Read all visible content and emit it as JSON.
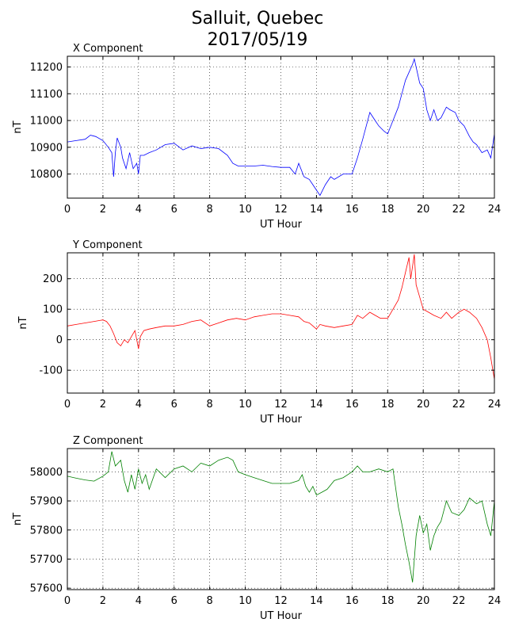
{
  "figure": {
    "title_line1": "Salluit, Quebec",
    "title_line2": "2017/05/19"
  },
  "chart_data": [
    {
      "type": "line",
      "title": "X Component",
      "xlabel": "UT Hour",
      "ylabel": "nT",
      "xlim": [
        0,
        24
      ],
      "ylim": [
        10710,
        11240
      ],
      "xticks": [
        0,
        2,
        4,
        6,
        8,
        10,
        12,
        14,
        16,
        18,
        20,
        22,
        24
      ],
      "yticks": [
        10800,
        10900,
        11000,
        11100,
        11200
      ],
      "grid": true,
      "color": "#0000ff",
      "x": [
        0,
        0.5,
        1,
        1.3,
        1.6,
        2,
        2.3,
        2.5,
        2.6,
        2.7,
        2.8,
        3,
        3.1,
        3.3,
        3.5,
        3.7,
        3.9,
        4,
        4.1,
        4.3,
        4.6,
        5,
        5.5,
        6,
        6.5,
        7,
        7.5,
        8,
        8.5,
        9,
        9.3,
        9.6,
        10,
        10.5,
        11,
        11.5,
        12,
        12.5,
        12.8,
        13,
        13.3,
        13.6,
        13.8,
        14,
        14.2,
        14.5,
        14.8,
        15,
        15.5,
        16,
        16.3,
        16.6,
        16.8,
        17,
        17.3,
        17.5,
        17.8,
        18,
        18.3,
        18.6,
        18.8,
        19,
        19.2,
        19.4,
        19.5,
        19.6,
        19.8,
        20,
        20.2,
        20.4,
        20.6,
        20.8,
        21,
        21.3,
        21.5,
        21.8,
        22,
        22.3,
        22.6,
        22.8,
        23,
        23.3,
        23.6,
        23.8,
        24
      ],
      "y": [
        10920,
        10925,
        10930,
        10945,
        10940,
        10925,
        10900,
        10880,
        10790,
        10880,
        10935,
        10900,
        10860,
        10820,
        10880,
        10820,
        10840,
        10800,
        10870,
        10870,
        10880,
        10890,
        10910,
        10915,
        10890,
        10905,
        10895,
        10900,
        10895,
        10870,
        10840,
        10830,
        10830,
        10830,
        10833,
        10828,
        10825,
        10825,
        10800,
        10840,
        10790,
        10780,
        10760,
        10740,
        10720,
        10760,
        10790,
        10780,
        10800,
        10800,
        10860,
        10930,
        10980,
        11030,
        11000,
        10980,
        10960,
        10950,
        11000,
        11050,
        11100,
        11150,
        11180,
        11210,
        11230,
        11200,
        11140,
        11120,
        11040,
        11000,
        11040,
        11000,
        11010,
        11050,
        11040,
        11030,
        11000,
        10980,
        10940,
        10920,
        10910,
        10880,
        10890,
        10860,
        10950
      ]
    },
    {
      "type": "line",
      "title": "Y Component",
      "xlabel": "UT Hour",
      "ylabel": "nT",
      "xlim": [
        0,
        24
      ],
      "ylim": [
        -175,
        285
      ],
      "xticks": [
        0,
        2,
        4,
        6,
        8,
        10,
        12,
        14,
        16,
        18,
        20,
        22,
        24
      ],
      "yticks": [
        -100,
        0,
        100,
        200
      ],
      "grid": true,
      "color": "#ff0000",
      "x": [
        0,
        0.5,
        1,
        1.5,
        2,
        2.2,
        2.4,
        2.6,
        2.8,
        3,
        3.2,
        3.4,
        3.6,
        3.8,
        4,
        4.1,
        4.3,
        4.6,
        5,
        5.5,
        6,
        6.5,
        7,
        7.5,
        8,
        8.5,
        9,
        9.5,
        10,
        10.5,
        11,
        11.5,
        12,
        12.5,
        13,
        13.3,
        13.6,
        13.8,
        14,
        14.2,
        14.5,
        15,
        15.5,
        16,
        16.3,
        16.6,
        17,
        17.3,
        17.6,
        18,
        18.3,
        18.6,
        18.8,
        19,
        19.2,
        19.3,
        19.5,
        19.6,
        19.8,
        20,
        20.3,
        20.6,
        21,
        21.3,
        21.6,
        22,
        22.3,
        22.6,
        23,
        23.3,
        23.6,
        23.8,
        24
      ],
      "y": [
        45,
        50,
        55,
        60,
        65,
        60,
        45,
        20,
        -10,
        -20,
        0,
        -10,
        10,
        30,
        -30,
        10,
        30,
        35,
        40,
        45,
        45,
        50,
        60,
        65,
        45,
        55,
        65,
        70,
        65,
        75,
        80,
        85,
        85,
        80,
        75,
        60,
        55,
        45,
        35,
        50,
        45,
        40,
        45,
        50,
        80,
        70,
        90,
        80,
        70,
        70,
        100,
        130,
        170,
        220,
        270,
        200,
        280,
        180,
        140,
        100,
        90,
        80,
        70,
        90,
        70,
        90,
        100,
        90,
        70,
        40,
        0,
        -60,
        -130
      ]
    },
    {
      "type": "line",
      "title": "Z Component",
      "xlabel": "UT Hour",
      "ylabel": "nT",
      "xlim": [
        0,
        24
      ],
      "ylim": [
        57595,
        58080
      ],
      "xticks": [
        0,
        2,
        4,
        6,
        8,
        10,
        12,
        14,
        16,
        18,
        20,
        22,
        24
      ],
      "yticks": [
        57600,
        57700,
        57800,
        57900,
        58000
      ],
      "grid": true,
      "color": "#008000",
      "x": [
        0,
        0.5,
        1,
        1.5,
        2,
        2.3,
        2.5,
        2.7,
        3,
        3.2,
        3.4,
        3.6,
        3.8,
        4,
        4.2,
        4.4,
        4.6,
        5,
        5.5,
        6,
        6.5,
        7,
        7.5,
        8,
        8.5,
        9,
        9.3,
        9.6,
        10,
        10.5,
        11,
        11.5,
        12,
        12.5,
        13,
        13.2,
        13.4,
        13.6,
        13.8,
        14,
        14.3,
        14.6,
        15,
        15.5,
        16,
        16.3,
        16.6,
        17,
        17.5,
        18,
        18.3,
        18.6,
        18.8,
        19,
        19.2,
        19.4,
        19.6,
        19.8,
        20,
        20.2,
        20.4,
        20.6,
        20.8,
        21,
        21.3,
        21.6,
        22,
        22.3,
        22.6,
        23,
        23.3,
        23.6,
        23.8,
        24
      ],
      "y": [
        57985,
        57978,
        57972,
        57968,
        57985,
        58000,
        58070,
        58020,
        58040,
        57970,
        57930,
        57990,
        57940,
        58010,
        57960,
        57990,
        57940,
        58010,
        57980,
        58010,
        58020,
        58000,
        58030,
        58020,
        58040,
        58050,
        58040,
        58000,
        57990,
        57980,
        57970,
        57960,
        57960,
        57960,
        57970,
        57990,
        57950,
        57930,
        57950,
        57920,
        57930,
        57940,
        57970,
        57980,
        58000,
        58020,
        58000,
        58000,
        58010,
        58000,
        58010,
        57880,
        57820,
        57750,
        57690,
        57620,
        57780,
        57850,
        57790,
        57820,
        57730,
        57780,
        57810,
        57830,
        57900,
        57860,
        57850,
        57870,
        57910,
        57890,
        57900,
        57820,
        57780,
        57900
      ]
    }
  ]
}
